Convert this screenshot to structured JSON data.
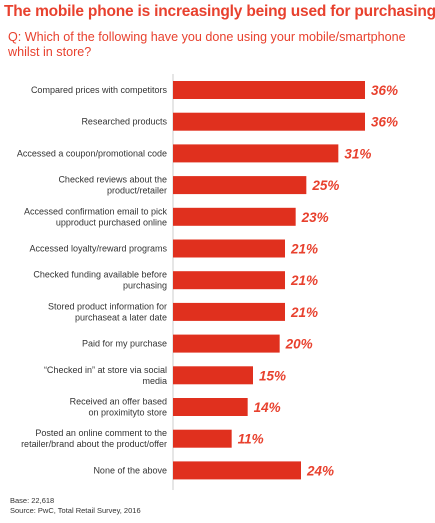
{
  "header": {
    "title": "The mobile phone is increasingly being used for purchasing",
    "question": "Q: Which of the following have you done using your mobile/smartphone whilst in store?"
  },
  "footer": {
    "base": "Base: 22,618",
    "source": "Source: PwC, Total Retail Survey, 2016"
  },
  "chart_data": {
    "type": "bar",
    "orientation": "horizontal",
    "categories": [
      [
        "Compared prices with competitors"
      ],
      [
        "Researched products"
      ],
      [
        "Accessed a coupon/promotional code"
      ],
      [
        "Checked reviews about the",
        "product/retailer"
      ],
      [
        "Accessed confirmation email to pick",
        "upproduct purchased online"
      ],
      [
        "Accessed loyalty/reward programs"
      ],
      [
        "Checked funding available before",
        "purchasing"
      ],
      [
        "Stored product information for",
        "purchaseat a later date"
      ],
      [
        "Paid for my purchase"
      ],
      [
        "“Checked in” at store via social",
        "media"
      ],
      [
        "Received an offer based",
        "on proximityto store"
      ],
      [
        "Posted an online comment to the",
        "retailer/brand about the product/offer"
      ],
      [
        "None of the above"
      ]
    ],
    "values": [
      36,
      36,
      31,
      25,
      23,
      21,
      21,
      21,
      20,
      15,
      14,
      11,
      24
    ],
    "value_labels": [
      "36%",
      "36%",
      "31%",
      "25%",
      "23%",
      "21%",
      "21%",
      "21%",
      "20%",
      "15%",
      "14%",
      "11%",
      "24%"
    ],
    "xlim": [
      0,
      36
    ],
    "bar_color": "#e0301e",
    "label_color": "#e8412e",
    "grid": false,
    "legend": "none"
  }
}
